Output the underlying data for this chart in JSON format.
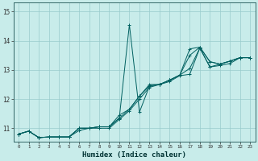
{
  "xlabel": "Humidex (Indice chaleur)",
  "bg_color": "#c8ecea",
  "line_color": "#006060",
  "grid_color": "#99cccc",
  "xlim": [
    -0.5,
    23.5
  ],
  "ylim": [
    10.55,
    15.3
  ],
  "yticks": [
    11,
    12,
    13,
    14,
    15
  ],
  "xticks": [
    0,
    1,
    2,
    3,
    4,
    5,
    6,
    7,
    8,
    9,
    10,
    11,
    12,
    13,
    14,
    15,
    16,
    17,
    18,
    19,
    20,
    21,
    22,
    23
  ],
  "lines": [
    {
      "x": [
        0,
        1,
        2,
        3,
        4,
        5,
        6,
        7,
        8,
        9,
        10,
        11,
        12,
        13,
        14,
        15,
        16,
        17,
        18,
        19,
        20,
        21,
        22,
        23
      ],
      "y": [
        10.8,
        10.9,
        10.68,
        10.7,
        10.7,
        10.7,
        11.0,
        11.0,
        11.05,
        11.05,
        11.35,
        14.55,
        11.55,
        12.45,
        12.5,
        12.65,
        12.82,
        13.05,
        13.75,
        13.1,
        13.2,
        13.3,
        13.42,
        13.42
      ]
    },
    {
      "x": [
        0,
        1,
        2,
        3,
        4,
        5,
        6,
        7,
        8,
        9,
        10,
        11,
        12,
        13,
        14,
        15,
        16,
        17,
        18,
        19,
        20,
        21,
        22,
        23
      ],
      "y": [
        10.8,
        10.9,
        10.68,
        10.7,
        10.7,
        10.7,
        11.0,
        11.0,
        11.05,
        11.05,
        11.35,
        11.65,
        12.1,
        12.45,
        12.5,
        12.65,
        12.82,
        13.72,
        13.78,
        13.28,
        13.2,
        13.3,
        13.42,
        13.42
      ]
    },
    {
      "x": [
        0,
        1,
        2,
        3,
        4,
        5,
        6,
        7,
        8,
        9,
        10,
        11,
        12,
        13,
        14,
        15,
        16,
        17,
        18,
        19,
        20,
        21,
        22,
        23
      ],
      "y": [
        10.8,
        10.9,
        10.68,
        10.7,
        10.7,
        10.7,
        11.0,
        11.0,
        11.05,
        11.05,
        11.45,
        11.65,
        12.1,
        12.5,
        12.5,
        12.65,
        12.82,
        13.5,
        13.78,
        13.28,
        13.2,
        13.3,
        13.42,
        13.42
      ]
    },
    {
      "x": [
        0,
        1,
        2,
        3,
        4,
        5,
        6,
        7,
        8,
        9,
        10,
        11,
        12,
        13,
        14,
        15,
        16,
        17,
        18,
        19,
        20,
        21,
        22,
        23
      ],
      "y": [
        10.8,
        10.9,
        10.68,
        10.7,
        10.7,
        10.7,
        10.92,
        11.0,
        11.0,
        11.0,
        11.3,
        11.6,
        12.0,
        12.4,
        12.5,
        12.6,
        12.8,
        12.85,
        13.75,
        13.1,
        13.15,
        13.22,
        13.42,
        13.42
      ]
    }
  ]
}
